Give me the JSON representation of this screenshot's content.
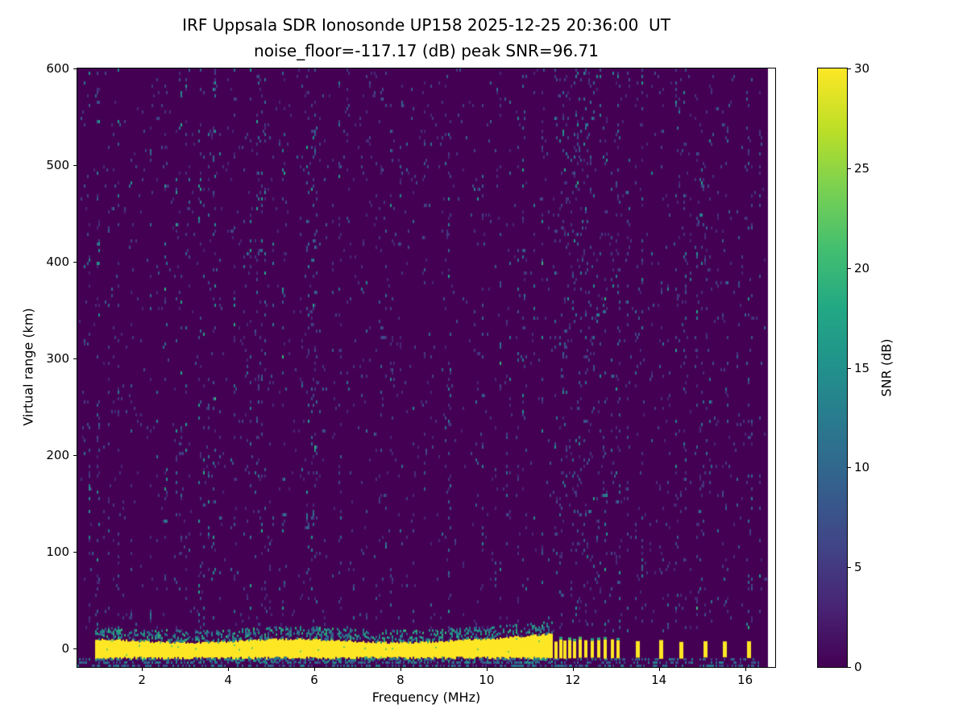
{
  "chart_data": {
    "type": "heatmap",
    "title": "IRF Uppsala SDR Ionosonde UP158 2025-12-25 20:36:00  UT",
    "subtitle": "noise_floor=-117.17 (dB) peak SNR=96.71",
    "xlabel": "Frequency (MHz)",
    "ylabel": "Virtual range (km)",
    "xlim": [
      0.5,
      16.7
    ],
    "ylim": [
      -19.2,
      600
    ],
    "xticks": [
      2,
      4,
      6,
      8,
      10,
      12,
      14,
      16
    ],
    "yticks": [
      0,
      100,
      200,
      300,
      400,
      500,
      600
    ],
    "noise_floor_db": -117.17,
    "peak_snr_db": 96.71,
    "grid": false,
    "colorbar": {
      "label": "SNR (dB)",
      "min": 0,
      "max": 30,
      "ticks": [
        0,
        5,
        10,
        15,
        20,
        25,
        30
      ],
      "colormap": "viridis",
      "stops": [
        "#440154",
        "#482475",
        "#414487",
        "#355f8d",
        "#2a788e",
        "#21918c",
        "#22a884",
        "#44bf70",
        "#7ad151",
        "#bddf26",
        "#fde725"
      ]
    },
    "features": {
      "background_snr_db": [
        0,
        2
      ],
      "ground_echo_band": {
        "freq_mhz": [
          0.93,
          11.55
        ],
        "range_km": [
          -11,
          9
        ],
        "snr_db": 30
      },
      "comb_echo_freqs_mhz": [
        11.62,
        11.72,
        11.82,
        11.93,
        12.04,
        12.17,
        12.3,
        12.45,
        12.6,
        12.76,
        12.92,
        13.05
      ],
      "isolated_echo_freqs_mhz": [
        13.5,
        14.05,
        14.52,
        15.08,
        15.52,
        16.08
      ],
      "data_gap_freq_mhz": [
        16.55,
        16.7
      ],
      "speckle_description": "sparse teal RFI/noise speckles in vertical streaks, denser below 6.5 MHz and at echo comb frequencies; teal dashes along bottom edge"
    }
  }
}
